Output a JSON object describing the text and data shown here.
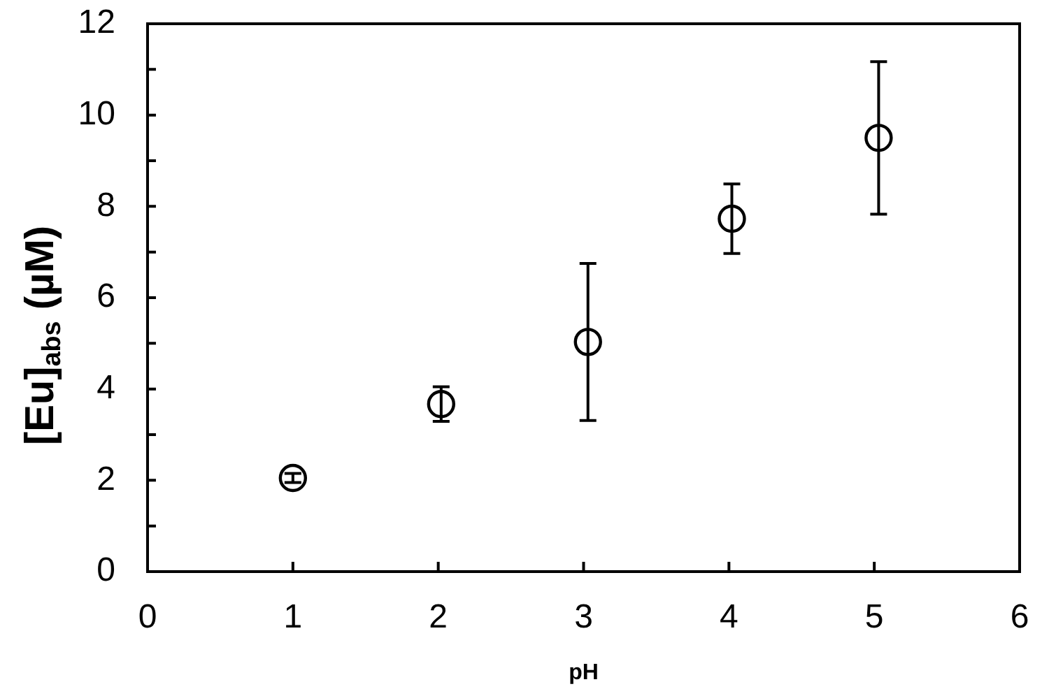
{
  "chart_data": {
    "type": "scatter",
    "xlabel": "pH",
    "ylabel": "[Eu]$_{abs}$ (µM)",
    "x": [
      1.0,
      2.02,
      3.03,
      4.02,
      5.03
    ],
    "series": [
      {
        "color": "#000000",
        "values": [
          2.05,
          3.67,
          5.03,
          7.73,
          9.5
        ],
        "errors": [
          0.1,
          0.38,
          1.72,
          0.76,
          1.67
        ]
      }
    ],
    "xlim": [
      0,
      6
    ],
    "xticks": [
      0,
      1,
      2,
      3,
      4,
      5,
      6
    ],
    "ylim": [
      0,
      12
    ],
    "yticks": [
      0,
      {
        "value": 1,
        "label": null
      },
      2,
      {
        "value": 3,
        "label": null
      },
      4,
      {
        "value": 5,
        "label": null
      },
      6,
      {
        "value": 7,
        "label": null
      },
      8,
      {
        "value": 9,
        "label": null
      },
      10,
      {
        "value": 11,
        "label": null
      },
      12
    ],
    "marker": "circle"
  }
}
